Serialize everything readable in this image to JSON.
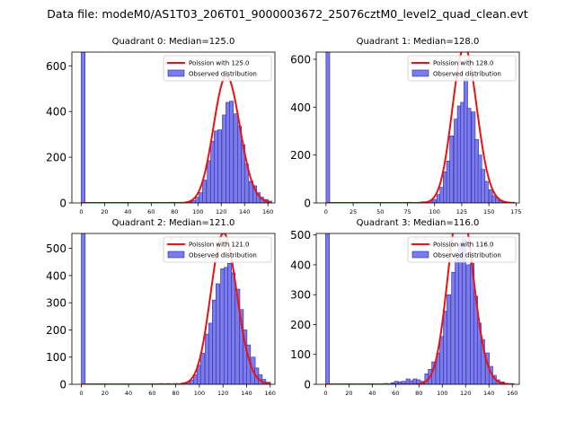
{
  "suptitle": "Data file: modeM0/AS1T03_206T01_9000003672_25076cztM0_level2_quad_clean.evt",
  "colors": {
    "bar_fill": "#7b7bf0",
    "bar_edge": "#2a2a9a",
    "curve": "#ee1111"
  },
  "legend": {
    "observed_label": "Observed distribution"
  },
  "chart_data": [
    {
      "type": "bar",
      "title": "Quadrant 0: Median=125.0",
      "poisson_label": "Poission with 125.0",
      "poisson_mean": 125,
      "xlim": [
        -8,
        166
      ],
      "ylim": [
        0,
        660
      ],
      "xticks": [
        0,
        20,
        40,
        60,
        80,
        100,
        120,
        140,
        160
      ],
      "yticks": [
        0,
        200,
        400,
        600
      ],
      "bin_width": 3.3,
      "bins": [
        {
          "x": 0,
          "y": 660
        },
        {
          "x": 75,
          "y": 3
        },
        {
          "x": 78,
          "y": 3
        },
        {
          "x": 92,
          "y": 5
        },
        {
          "x": 95,
          "y": 10
        },
        {
          "x": 98,
          "y": 25
        },
        {
          "x": 101,
          "y": 45
        },
        {
          "x": 104,
          "y": 100
        },
        {
          "x": 108,
          "y": 185
        },
        {
          "x": 111,
          "y": 270
        },
        {
          "x": 114,
          "y": 315
        },
        {
          "x": 117,
          "y": 320
        },
        {
          "x": 121,
          "y": 385
        },
        {
          "x": 124,
          "y": 440
        },
        {
          "x": 127,
          "y": 445
        },
        {
          "x": 131,
          "y": 390
        },
        {
          "x": 134,
          "y": 335
        },
        {
          "x": 137,
          "y": 255
        },
        {
          "x": 140,
          "y": 170
        },
        {
          "x": 144,
          "y": 95
        },
        {
          "x": 147,
          "y": 75
        },
        {
          "x": 150,
          "y": 45
        },
        {
          "x": 153,
          "y": 25
        },
        {
          "x": 157,
          "y": 15
        },
        {
          "x": 160,
          "y": 8
        }
      ]
    },
    {
      "type": "bar",
      "title": "Quadrant 1: Median=128.0",
      "poisson_label": "Poission with 128.0",
      "poisson_mean": 128,
      "xlim": [
        -9,
        178
      ],
      "ylim": [
        0,
        630
      ],
      "xticks": [
        0,
        25,
        50,
        75,
        100,
        125,
        150,
        175
      ],
      "yticks": [
        0,
        200,
        400,
        600
      ],
      "bin_width": 3.4,
      "bins": [
        {
          "x": 0,
          "y": 630
        },
        {
          "x": 75,
          "y": 3
        },
        {
          "x": 85,
          "y": 3
        },
        {
          "x": 88,
          "y": 5
        },
        {
          "x": 95,
          "y": 10
        },
        {
          "x": 98,
          "y": 15
        },
        {
          "x": 102,
          "y": 35
        },
        {
          "x": 105,
          "y": 65
        },
        {
          "x": 108,
          "y": 130
        },
        {
          "x": 111,
          "y": 175
        },
        {
          "x": 114,
          "y": 280
        },
        {
          "x": 118,
          "y": 350
        },
        {
          "x": 121,
          "y": 405
        },
        {
          "x": 124,
          "y": 420
        },
        {
          "x": 127,
          "y": 520
        },
        {
          "x": 130,
          "y": 395
        },
        {
          "x": 134,
          "y": 380
        },
        {
          "x": 137,
          "y": 265
        },
        {
          "x": 140,
          "y": 200
        },
        {
          "x": 143,
          "y": 140
        },
        {
          "x": 146,
          "y": 90
        },
        {
          "x": 150,
          "y": 55
        },
        {
          "x": 153,
          "y": 30
        },
        {
          "x": 156,
          "y": 20
        },
        {
          "x": 159,
          "y": 10
        },
        {
          "x": 162,
          "y": 6
        },
        {
          "x": 166,
          "y": 3
        }
      ]
    },
    {
      "type": "bar",
      "title": "Quadrant 2: Median=121.0",
      "poisson_label": "Poission with 121.0",
      "poisson_mean": 121,
      "xlim": [
        -8,
        164
      ],
      "ylim": [
        0,
        555
      ],
      "xticks": [
        0,
        20,
        40,
        60,
        80,
        100,
        120,
        140,
        160
      ],
      "yticks": [
        0,
        100,
        200,
        300,
        400,
        500
      ],
      "bin_width": 3.3,
      "bins": [
        {
          "x": 0,
          "y": 555
        },
        {
          "x": 66,
          "y": 3
        },
        {
          "x": 72,
          "y": 3
        },
        {
          "x": 78,
          "y": 3
        },
        {
          "x": 85,
          "y": 5
        },
        {
          "x": 88,
          "y": 8
        },
        {
          "x": 92,
          "y": 15
        },
        {
          "x": 95,
          "y": 35
        },
        {
          "x": 98,
          "y": 70
        },
        {
          "x": 101,
          "y": 115
        },
        {
          "x": 105,
          "y": 185
        },
        {
          "x": 108,
          "y": 225
        },
        {
          "x": 111,
          "y": 310
        },
        {
          "x": 114,
          "y": 370
        },
        {
          "x": 118,
          "y": 425
        },
        {
          "x": 121,
          "y": 430
        },
        {
          "x": 124,
          "y": 445
        },
        {
          "x": 127,
          "y": 410
        },
        {
          "x": 131,
          "y": 350
        },
        {
          "x": 134,
          "y": 275
        },
        {
          "x": 137,
          "y": 200
        },
        {
          "x": 140,
          "y": 145
        },
        {
          "x": 144,
          "y": 100
        },
        {
          "x": 147,
          "y": 60
        },
        {
          "x": 150,
          "y": 35
        },
        {
          "x": 153,
          "y": 18
        },
        {
          "x": 157,
          "y": 8
        }
      ]
    },
    {
      "type": "bar",
      "title": "Quadrant 3: Median=116.0",
      "poisson_label": "Poission with 116.0",
      "poisson_mean": 116,
      "xlim": [
        -8,
        166
      ],
      "ylim": [
        0,
        505
      ],
      "xticks": [
        0,
        20,
        40,
        60,
        80,
        100,
        120,
        140,
        160
      ],
      "yticks": [
        0,
        100,
        200,
        300,
        400,
        500
      ],
      "bin_width": 3.3,
      "bins": [
        {
          "x": 0,
          "y": 505
        },
        {
          "x": 50,
          "y": 3
        },
        {
          "x": 56,
          "y": 5
        },
        {
          "x": 59,
          "y": 10
        },
        {
          "x": 62,
          "y": 8
        },
        {
          "x": 65,
          "y": 10
        },
        {
          "x": 69,
          "y": 18
        },
        {
          "x": 72,
          "y": 12
        },
        {
          "x": 75,
          "y": 18
        },
        {
          "x": 78,
          "y": 15
        },
        {
          "x": 82,
          "y": 10
        },
        {
          "x": 85,
          "y": 35
        },
        {
          "x": 88,
          "y": 50
        },
        {
          "x": 91,
          "y": 75
        },
        {
          "x": 95,
          "y": 105
        },
        {
          "x": 98,
          "y": 160
        },
        {
          "x": 101,
          "y": 245
        },
        {
          "x": 104,
          "y": 300
        },
        {
          "x": 108,
          "y": 375
        },
        {
          "x": 111,
          "y": 440
        },
        {
          "x": 114,
          "y": 470
        },
        {
          "x": 117,
          "y": 485
        },
        {
          "x": 121,
          "y": 400
        },
        {
          "x": 124,
          "y": 405
        },
        {
          "x": 127,
          "y": 295
        },
        {
          "x": 130,
          "y": 205
        },
        {
          "x": 133,
          "y": 150
        },
        {
          "x": 137,
          "y": 105
        },
        {
          "x": 140,
          "y": 60
        },
        {
          "x": 143,
          "y": 30
        },
        {
          "x": 146,
          "y": 15
        },
        {
          "x": 150,
          "y": 8
        },
        {
          "x": 153,
          "y": 3
        }
      ]
    }
  ]
}
